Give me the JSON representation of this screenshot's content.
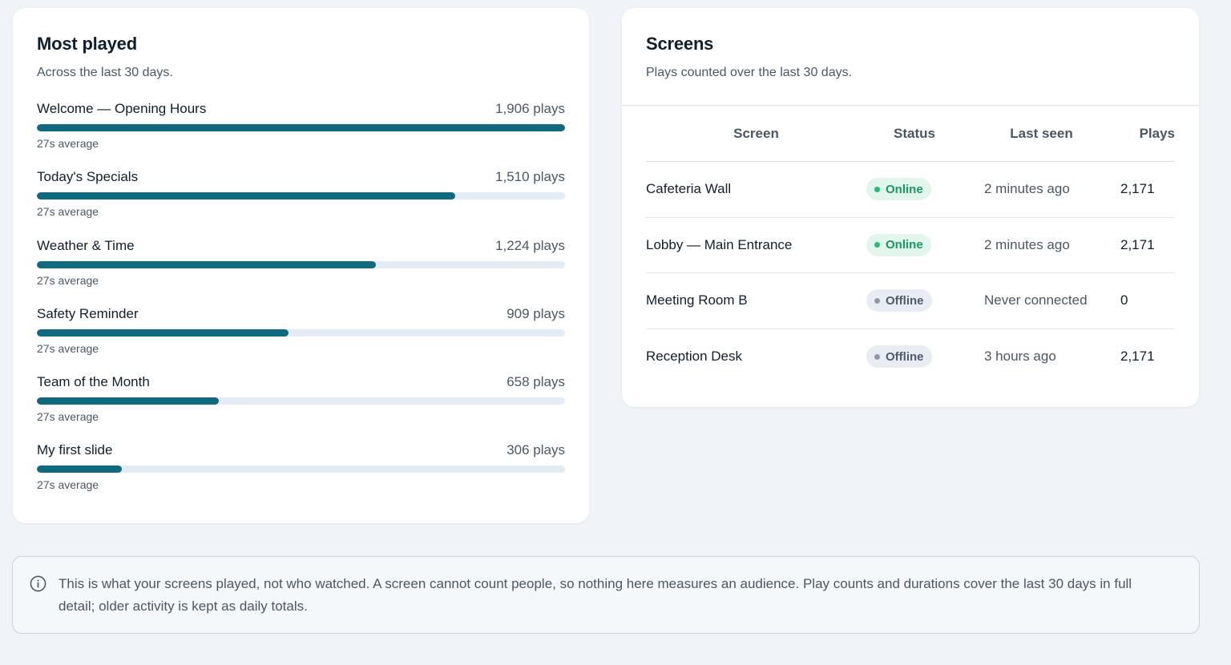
{
  "colors": {
    "bar_fill": "#0e6a80",
    "bar_track": "#e3ebf4",
    "online_bg": "#e3f6ee",
    "online_text": "#159a63",
    "online_dot": "#1fbf78",
    "offline_bg": "#e8edf3",
    "offline_text": "#4f5b67",
    "offline_dot": "#8e99a5"
  },
  "most_played": {
    "title": "Most played",
    "subtitle": "Across the last 30 days.",
    "items": [
      {
        "name": "Welcome — Opening Hours",
        "plays": "1,906 plays",
        "average": "27s average",
        "fraction": 1.0
      },
      {
        "name": "Today's Specials",
        "plays": "1,510 plays",
        "average": "27s average",
        "fraction": 0.792
      },
      {
        "name": "Weather & Time",
        "plays": "1,224 plays",
        "average": "27s average",
        "fraction": 0.642
      },
      {
        "name": "Safety Reminder",
        "plays": "909 plays",
        "average": "27s average",
        "fraction": 0.477
      },
      {
        "name": "Team of the Month",
        "plays": "658 plays",
        "average": "27s average",
        "fraction": 0.345
      },
      {
        "name": "My first slide",
        "plays": "306 plays",
        "average": "27s average",
        "fraction": 0.161
      }
    ]
  },
  "screens": {
    "title": "Screens",
    "subtitle": "Plays counted over the last 30 days.",
    "columns": {
      "screen": "Screen",
      "status": "Status",
      "last_seen": "Last seen",
      "plays": "Plays"
    },
    "rows": [
      {
        "screen": "Cafeteria Wall",
        "status": "Online",
        "last_seen": "2 minutes ago",
        "plays": "2,171"
      },
      {
        "screen": "Lobby — Main Entrance",
        "status": "Online",
        "last_seen": "2 minutes ago",
        "plays": "2,171"
      },
      {
        "screen": "Meeting Room B",
        "status": "Offline",
        "last_seen": "Never connected",
        "plays": "0"
      },
      {
        "screen": "Reception Desk",
        "status": "Offline",
        "last_seen": "3 hours ago",
        "plays": "2,171"
      }
    ]
  },
  "notice": {
    "icon": "info-icon",
    "text": "This is what your screens played, not who watched. A screen cannot count people, so nothing here measures an audience. Play counts and durations cover the last 30 days in full detail; older activity is kept as daily totals."
  }
}
